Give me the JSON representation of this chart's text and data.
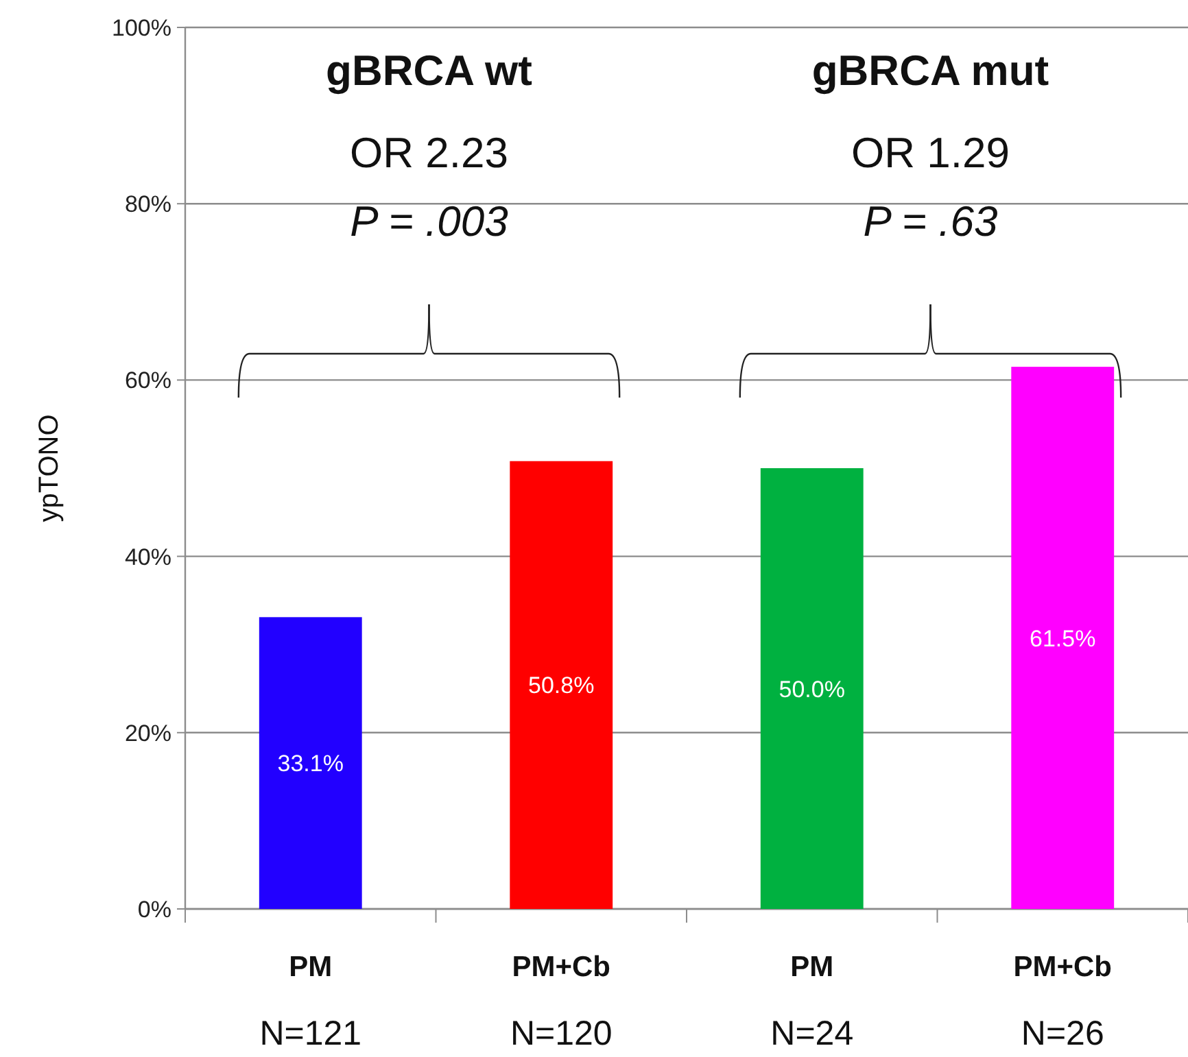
{
  "chart_data": {
    "type": "bar",
    "ylabel": "ypTONO",
    "categories": [
      "PM\nN=121",
      "PM+Cb\nN=120",
      "PM\nN=24",
      "PM+Cb\nN=26"
    ],
    "values": [
      33.1,
      50.8,
      50.0,
      61.5
    ],
    "colors": [
      "#2200ff",
      "#ff0000",
      "#00b140",
      "#ff00ff"
    ],
    "value_labels": [
      "33.1%",
      "50.8%",
      "50.0%",
      "61.5%"
    ],
    "ylim": [
      0,
      100
    ],
    "yticks": [
      {
        "value": 0,
        "label": "0%"
      },
      {
        "value": 20,
        "label": "20%"
      },
      {
        "value": 40,
        "label": "40%"
      },
      {
        "value": 60,
        "label": "60%"
      },
      {
        "value": 80,
        "label": "80%"
      },
      {
        "value": 100,
        "label": "100%"
      }
    ],
    "grid": "y",
    "annotations": [
      "gBRCA wt",
      "OR 2.23",
      "P = .003",
      "gBRCA mut",
      "OR 1.29",
      "P = .63"
    ]
  }
}
